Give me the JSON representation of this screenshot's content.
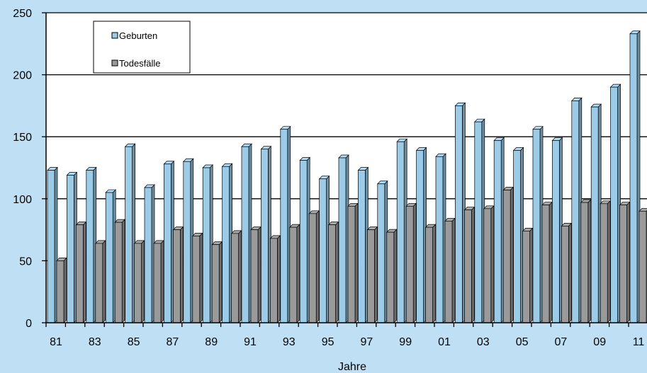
{
  "chart_data": {
    "type": "bar",
    "three_d": true,
    "title": "",
    "xlabel": "Jahre",
    "ylabel": "",
    "ylim": [
      0,
      250
    ],
    "yticks": [
      0,
      50,
      100,
      150,
      200,
      250
    ],
    "grid": true,
    "legend_position": "top-left",
    "categories": [
      "81",
      "82",
      "83",
      "84",
      "85",
      "86",
      "87",
      "88",
      "89",
      "90",
      "91",
      "92",
      "93",
      "94",
      "95",
      "96",
      "97",
      "98",
      "99",
      "00",
      "01",
      "02",
      "03",
      "04",
      "05",
      "06",
      "07",
      "08",
      "09",
      "10",
      "11"
    ],
    "xtick_labels": [
      "81",
      "83",
      "85",
      "87",
      "89",
      "91",
      "93",
      "95",
      "97",
      "99",
      "01",
      "03",
      "05",
      "07",
      "09",
      "11"
    ],
    "series": [
      {
        "name": "Geburten",
        "color": "#9ccbe8",
        "values": [
          123,
          119,
          123,
          105,
          142,
          109,
          128,
          130,
          125,
          126,
          142,
          140,
          156,
          131,
          116,
          133,
          123,
          112,
          146,
          139,
          134,
          175,
          162,
          147,
          139,
          156,
          147,
          179,
          174,
          190,
          233
        ]
      },
      {
        "name": "Todesfälle",
        "color": "#9a9a9a",
        "values": [
          50,
          79,
          64,
          81,
          64,
          64,
          75,
          70,
          63,
          72,
          75,
          68,
          77,
          88,
          79,
          94,
          75,
          73,
          94,
          77,
          82,
          91,
          92,
          107,
          74,
          95,
          78,
          97,
          96,
          95,
          90
        ]
      }
    ]
  }
}
